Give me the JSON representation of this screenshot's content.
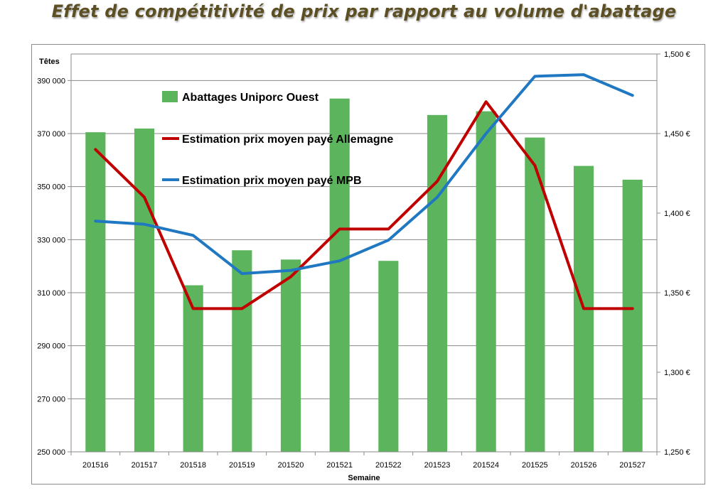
{
  "title": "Effet de compétitivité de prix par rapport au volume d'abattage",
  "chart_data": {
    "type": "bar",
    "title": "Effet de compétitivité de prix par rapport au volume d'abattage",
    "xlabel": "Semaine",
    "ylabel": "Têtes",
    "categories": [
      "201516",
      "201517",
      "201518",
      "201519",
      "201520",
      "201521",
      "201522",
      "201523",
      "201524",
      "201525",
      "201526",
      "201527"
    ],
    "y_left": {
      "range": [
        250000,
        400000
      ],
      "ticks": [
        250000,
        270000,
        290000,
        310000,
        330000,
        350000,
        370000,
        390000
      ],
      "tick_labels": [
        "250 000",
        "270 000",
        "290 000",
        "310 000",
        "330 000",
        "350 000",
        "370 000",
        "390 000"
      ]
    },
    "y_right": {
      "range": [
        1.25,
        1.5
      ],
      "ticks": [
        1.25,
        1.3,
        1.35,
        1.4,
        1.45,
        1.5
      ],
      "tick_labels": [
        "1,250 €",
        "1,300 €",
        "1,350 €",
        "1,400 €",
        "1,450 €",
        "1,500 €"
      ]
    },
    "series": [
      {
        "name": "Abattages Uniporc Ouest",
        "kind": "bar",
        "axis": "left",
        "color": "#5cb55c",
        "values": [
          370500,
          371900,
          312800,
          326000,
          322500,
          383200,
          322000,
          377000,
          378400,
          368500,
          357800,
          352600
        ]
      },
      {
        "name": "Estimation prix moyen payé Allemagne",
        "kind": "line",
        "axis": "right",
        "color": "#c00000",
        "values": [
          1.44,
          1.41,
          1.34,
          1.34,
          1.36,
          1.39,
          1.39,
          1.42,
          1.47,
          1.43,
          1.34,
          1.34
        ]
      },
      {
        "name": "Estimation prix moyen payé MPB",
        "kind": "line",
        "axis": "right",
        "color": "#1f78c1",
        "values": [
          1.395,
          1.393,
          1.386,
          1.362,
          1.364,
          1.37,
          1.383,
          1.41,
          1.45,
          1.486,
          1.487,
          1.474
        ]
      }
    ],
    "legend": "inside top-left",
    "grid": true
  }
}
